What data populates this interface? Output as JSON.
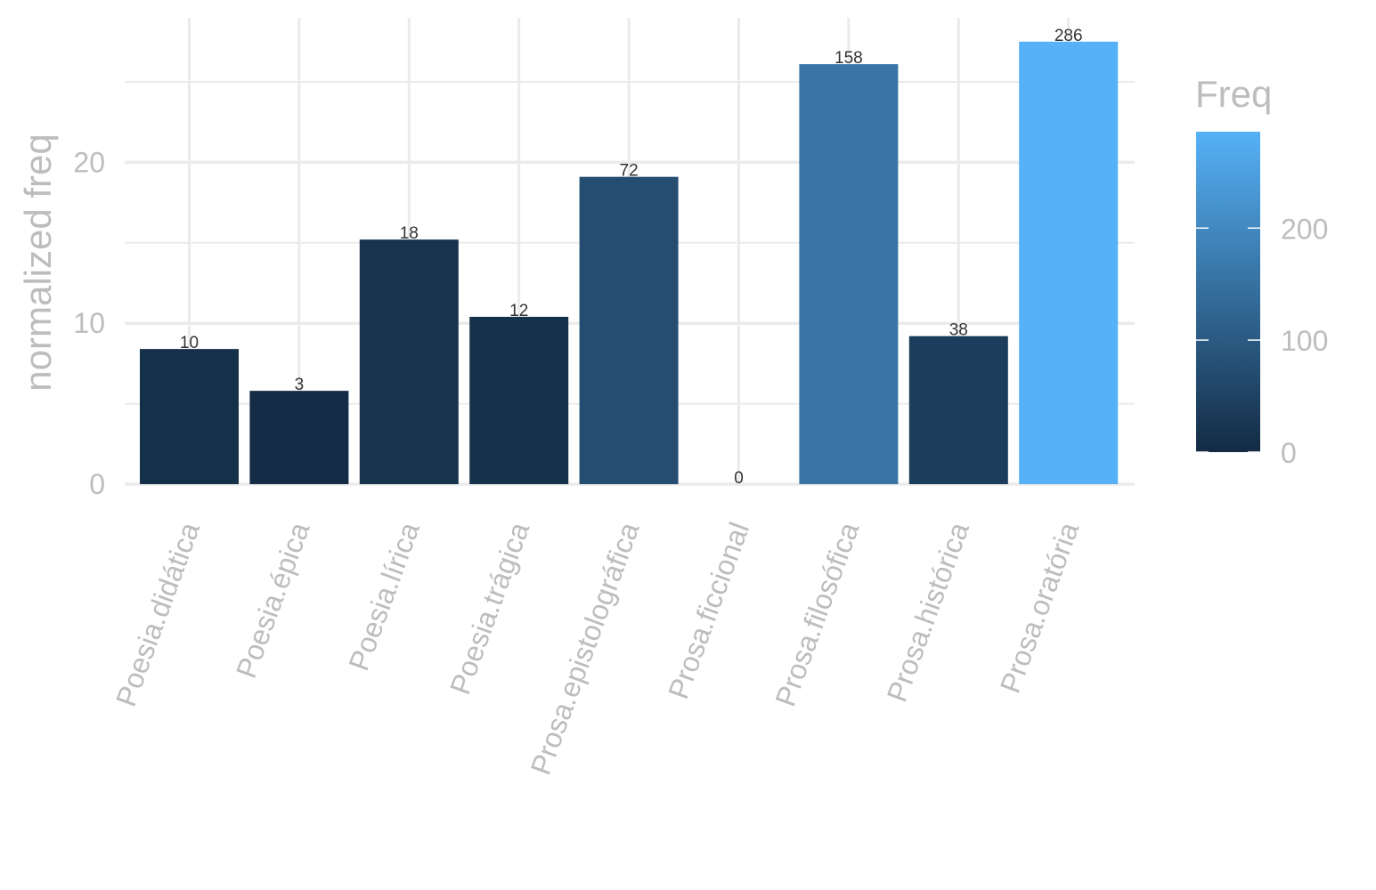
{
  "chart_data": {
    "type": "bar",
    "categories": [
      "Poesia.didática",
      "Poesia.épica",
      "Poesia.lírica",
      "Poesia.trágica",
      "Prosa.epistolográfica",
      "Prosa.ficcional",
      "Prosa.filosófica",
      "Prosa.histórica",
      "Prosa.oratória"
    ],
    "values": [
      8.4,
      5.8,
      15.2,
      10.4,
      19.1,
      0,
      26.1,
      9.2,
      27.5
    ],
    "freq": [
      10,
      3,
      18,
      12,
      72,
      0,
      158,
      38,
      286
    ],
    "data_labels": [
      "10",
      "3",
      "18",
      "12",
      "72",
      "0",
      "158",
      "38",
      "286"
    ],
    "ylabel": "normalized freq",
    "xlabel": "",
    "ylim": [
      0,
      28.5
    ],
    "yticks": [
      0,
      10,
      20
    ],
    "ytick_labels": [
      "0",
      "10",
      "20"
    ],
    "grid": true,
    "legend": {
      "title": "Freq",
      "placement": "right",
      "type": "colorbar",
      "range": [
        0,
        286
      ],
      "ticks": [
        0,
        100,
        200
      ],
      "tick_labels": [
        "0",
        "100",
        "200"
      ],
      "color_low": "#132b43",
      "color_high": "#56b1f7"
    }
  }
}
